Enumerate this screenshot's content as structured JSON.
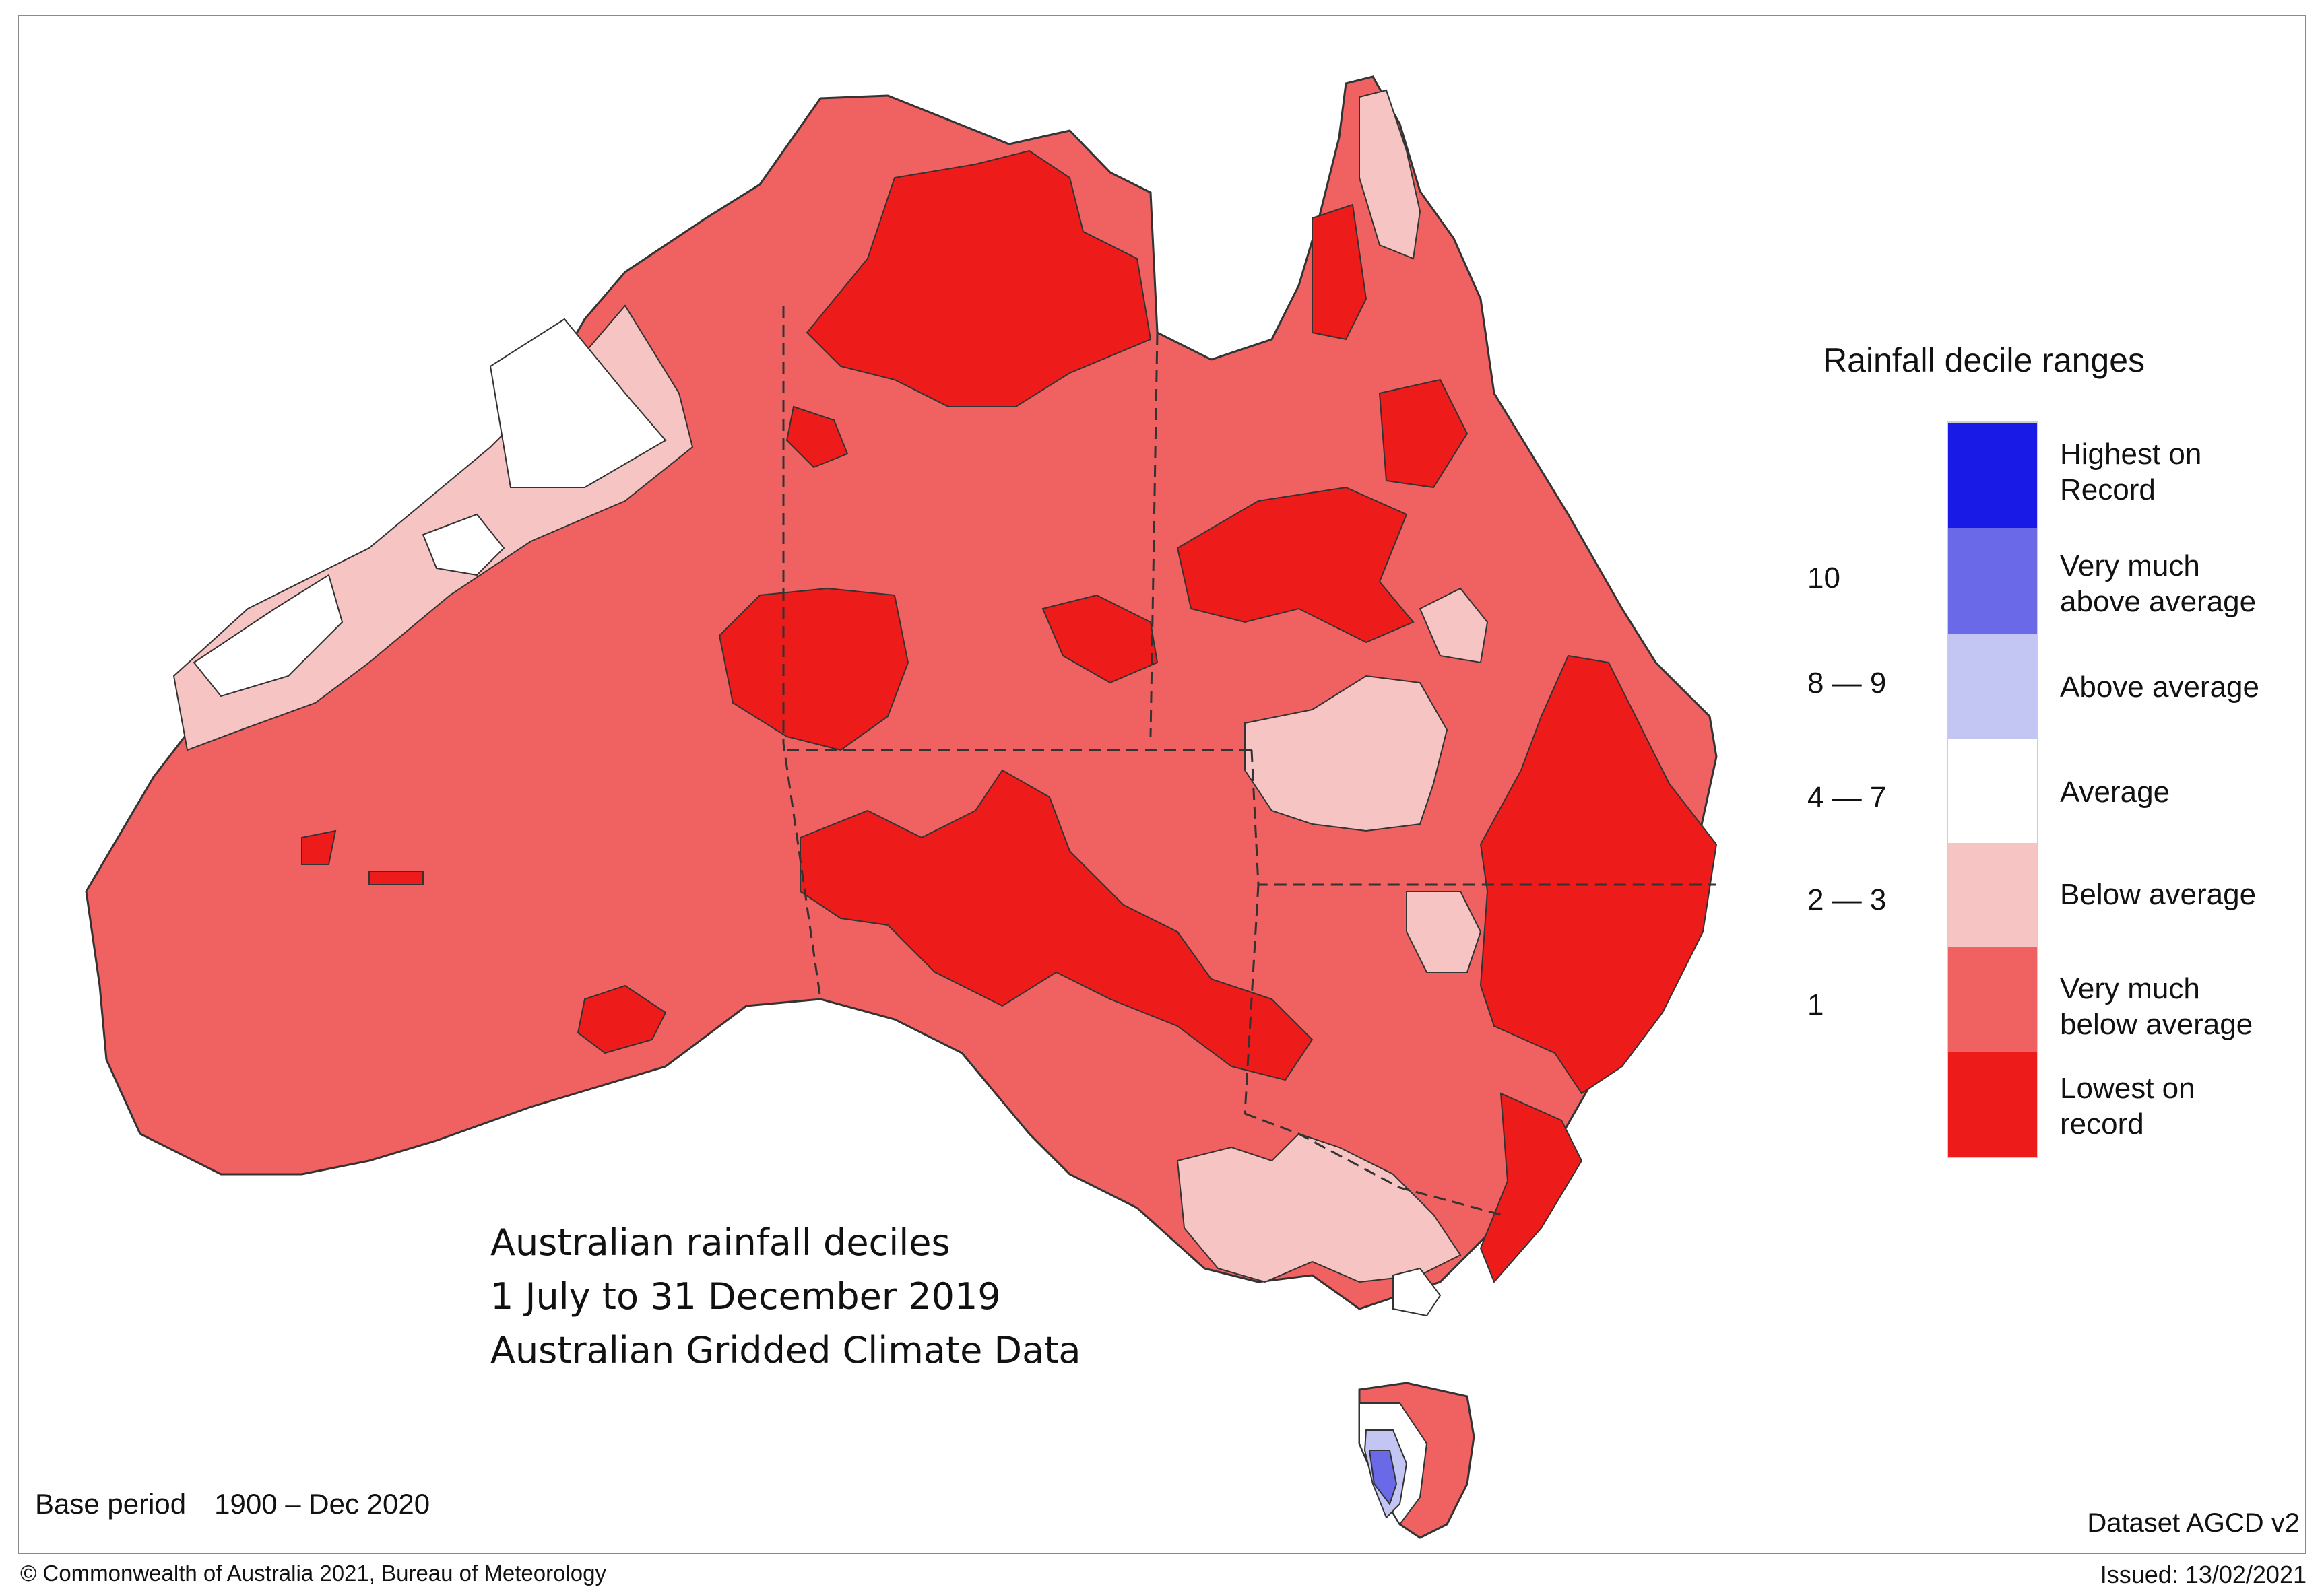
{
  "map": {
    "title_lines": [
      "Australian rainfall deciles",
      "1 July to 31 December 2019",
      "Australian Gridded Climate Data"
    ],
    "base_period_label": "Base period",
    "base_period_value": "1900 – Dec 2020",
    "dataset": "Dataset AGCD v2",
    "copyright": "© Commonwealth of Australia 2021, Bureau of Meteorology",
    "issued": "Issued: 13/02/2021"
  },
  "legend": {
    "title": "Rainfall decile ranges",
    "categories": [
      {
        "label": "Highest on\nRecord",
        "color": "#1a1ae6"
      },
      {
        "label": "Very much\nabove average",
        "color": "#6a6ae8"
      },
      {
        "label": "Above average",
        "color": "#c3c6f3"
      },
      {
        "label": "Average",
        "color": "#ffffff"
      },
      {
        "label": "Below average",
        "color": "#f7c4c4"
      },
      {
        "label": "Very much\nbelow average",
        "color": "#f06262"
      },
      {
        "label": "Lowest on\nrecord",
        "color": "#ee1b1b"
      }
    ],
    "ranges": [
      "10",
      "8 — 9",
      "4 — 7",
      "2 — 3",
      "1"
    ]
  }
}
